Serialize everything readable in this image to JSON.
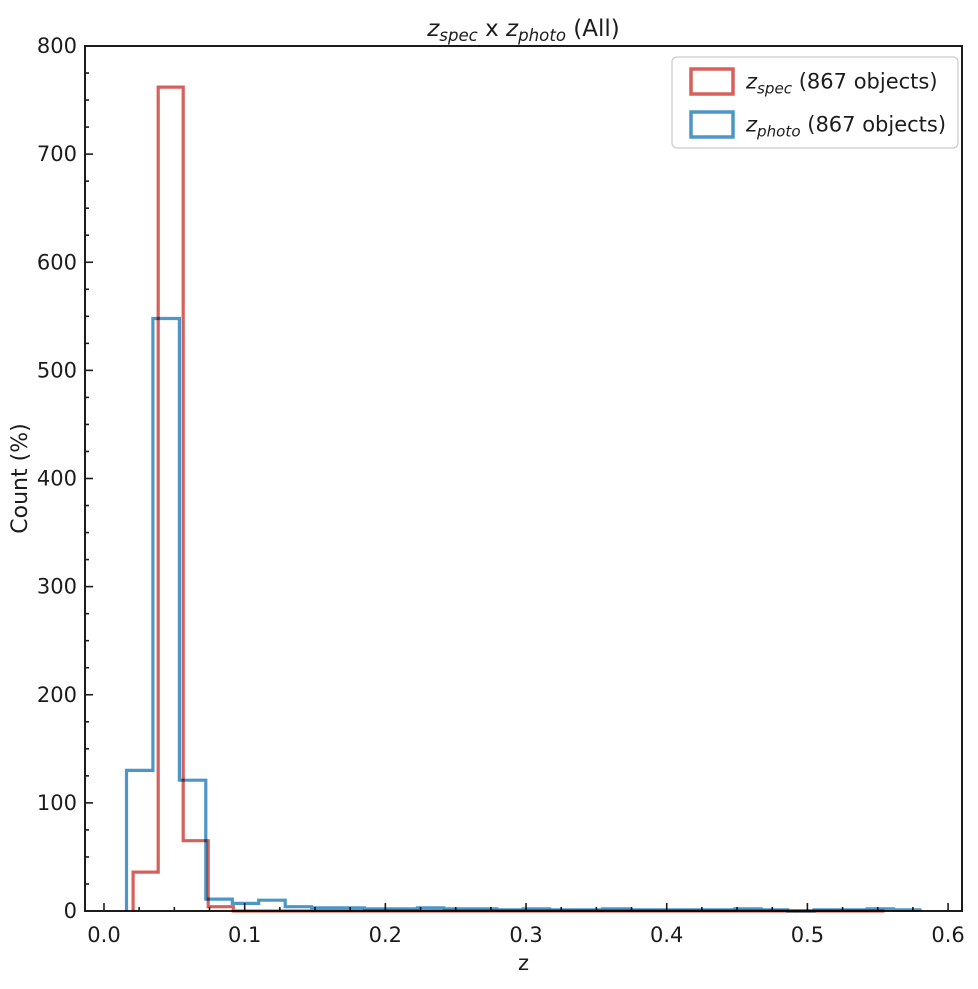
{
  "figure": {
    "background": "#ffffff",
    "frame_color": "#1c1c1c"
  },
  "title": {
    "plain": "z_spec x z_photo (All)",
    "parts": [
      {
        "text": "z",
        "italic": true,
        "sub": false
      },
      {
        "text": "spec",
        "italic": true,
        "sub": true
      },
      {
        "text": " x ",
        "italic": false,
        "sub": false
      },
      {
        "text": "z",
        "italic": true,
        "sub": false
      },
      {
        "text": "photo",
        "italic": true,
        "sub": true
      },
      {
        "text": " (All)",
        "italic": false,
        "sub": false
      }
    ]
  },
  "axes": {
    "xlabel": "z",
    "ylabel": "Count (%)",
    "xlim": [
      -0.0135,
      0.6099
    ],
    "ylim": [
      0,
      800
    ],
    "xticks": [
      0.0,
      0.1,
      0.2,
      0.3,
      0.4,
      0.5,
      0.6
    ],
    "xtick_labels": [
      "0.0",
      "0.1",
      "0.2",
      "0.3",
      "0.4",
      "0.5",
      "0.6"
    ],
    "yticks": [
      0,
      100,
      200,
      300,
      400,
      500,
      600,
      700,
      800
    ],
    "ytick_labels": [
      "0",
      "100",
      "200",
      "300",
      "400",
      "500",
      "600",
      "700",
      "800"
    ],
    "minor_x_step": 0.025,
    "minor_y_step": 25
  },
  "legend": {
    "entries": [
      {
        "name": "z_spec",
        "plain": "z_spec (867 objects)",
        "color": "#d8605c",
        "parts": [
          {
            "text": "z",
            "italic": true,
            "sub": false
          },
          {
            "text": "spec",
            "italic": true,
            "sub": true
          },
          {
            "text": " (867 objects)",
            "italic": false,
            "sub": false
          }
        ]
      },
      {
        "name": "z_photo",
        "plain": "z_photo (867 objects)",
        "color": "#4d96c8",
        "parts": [
          {
            "text": "z",
            "italic": true,
            "sub": false
          },
          {
            "text": "photo",
            "italic": true,
            "sub": true
          },
          {
            "text": " (867 objects)",
            "italic": false,
            "sub": false
          }
        ]
      }
    ]
  },
  "chart_data": {
    "type": "histogram-step",
    "title": "z_spec x z_photo (All)",
    "xlabel": "z",
    "ylabel": "Count (%)",
    "xlim": [
      -0.0135,
      0.6099
    ],
    "ylim": [
      0,
      800
    ],
    "grid": false,
    "legend_position": "upper right",
    "series": [
      {
        "name": "z_spec",
        "label": "z_spec (867 objects)",
        "total_objects": 867,
        "color": "#d8605c",
        "bin_start": 0.0207,
        "bin_width": 0.0178,
        "values": [
          36,
          762,
          65,
          4,
          0,
          0,
          0,
          0,
          0,
          0,
          0,
          0,
          0,
          0,
          0,
          0,
          0,
          0,
          0,
          0,
          0,
          0,
          0,
          0,
          0,
          0,
          0,
          0,
          0,
          0
        ]
      },
      {
        "name": "z_photo",
        "label": "z_photo (867 objects)",
        "total_objects": 867,
        "color": "#4d96c8",
        "bin_start": 0.016,
        "bin_width": 0.0188,
        "values": [
          130,
          548,
          121,
          11,
          7,
          10,
          4,
          3,
          3,
          2,
          2,
          3,
          2,
          2,
          1,
          2,
          1,
          1,
          2,
          1,
          1,
          1,
          1,
          2,
          1,
          0,
          1,
          1,
          2,
          1
        ]
      }
    ]
  }
}
